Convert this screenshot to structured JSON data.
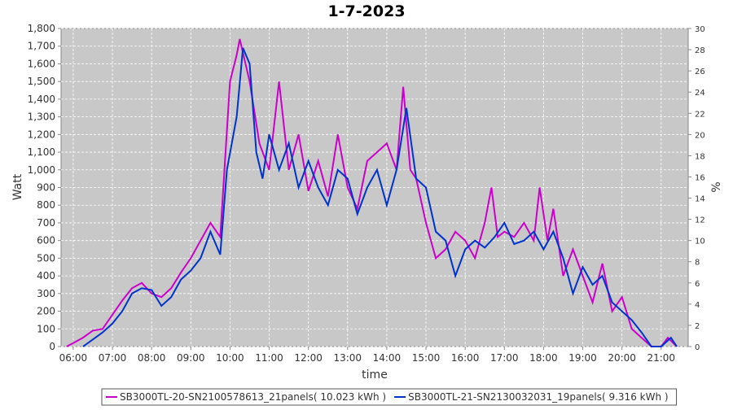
{
  "chart_data": {
    "type": "line",
    "title": "1-7-2023",
    "x_label": "time",
    "y_label": "Watt",
    "y2_label": "%",
    "xlim": [
      5.69,
      21.69
    ],
    "xticks": [
      {
        "value": 6,
        "label": "06:00"
      },
      {
        "value": 7,
        "label": "07:00"
      },
      {
        "value": 8,
        "label": "08:00"
      },
      {
        "value": 9,
        "label": "09:00"
      },
      {
        "value": 10,
        "label": "10:00"
      },
      {
        "value": 11,
        "label": "11:00"
      },
      {
        "value": 12,
        "label": "12:00"
      },
      {
        "value": 13,
        "label": "13:00"
      },
      {
        "value": 14,
        "label": "14:00"
      },
      {
        "value": 15,
        "label": "15:00"
      },
      {
        "value": 16,
        "label": "16:00"
      },
      {
        "value": 17,
        "label": "17:00"
      },
      {
        "value": 18,
        "label": "18:00"
      },
      {
        "value": 19,
        "label": "19:00"
      },
      {
        "value": 20,
        "label": "20:00"
      },
      {
        "value": 21,
        "label": "21:00"
      }
    ],
    "ylim": [
      0,
      1800
    ],
    "yticks": [
      0,
      100,
      200,
      300,
      400,
      500,
      600,
      700,
      800,
      900,
      {
        "value": 1000,
        "label": "1,000"
      },
      {
        "value": 1100,
        "label": "1,100"
      },
      {
        "value": 1200,
        "label": "1,200"
      },
      {
        "value": 1300,
        "label": "1,300"
      },
      {
        "value": 1400,
        "label": "1,400"
      },
      {
        "value": 1500,
        "label": "1,500"
      },
      {
        "value": 1600,
        "label": "1,600"
      },
      {
        "value": 1700,
        "label": "1,700"
      },
      {
        "value": 1800,
        "label": "1,800"
      }
    ],
    "y2lim": [
      0,
      30
    ],
    "y2ticks": [
      0,
      2,
      4,
      6,
      8,
      10,
      12,
      14,
      16,
      18,
      20,
      22,
      24,
      26,
      28,
      30
    ],
    "grid": true,
    "series": [
      {
        "name": "SB3000TL-20-SN2100578613_21panels( 10.023 kWh )",
        "color": "#cc00cc",
        "x": [
          5.83,
          6.0,
          6.25,
          6.5,
          6.75,
          7.0,
          7.25,
          7.5,
          7.75,
          8.0,
          8.25,
          8.5,
          8.75,
          9.0,
          9.25,
          9.5,
          9.75,
          10.0,
          10.17,
          10.25,
          10.5,
          10.75,
          11.0,
          11.25,
          11.5,
          11.75,
          12.0,
          12.25,
          12.5,
          12.75,
          13.0,
          13.25,
          13.5,
          13.75,
          14.0,
          14.25,
          14.42,
          14.6,
          14.75,
          15.0,
          15.25,
          15.5,
          15.75,
          16.0,
          16.25,
          16.5,
          16.67,
          16.83,
          17.0,
          17.25,
          17.5,
          17.75,
          17.9,
          18.1,
          18.25,
          18.5,
          18.75,
          19.0,
          19.25,
          19.5,
          19.75,
          20.0,
          20.25,
          20.5,
          20.75,
          21.0,
          21.17,
          21.4
        ],
        "values": [
          0,
          20,
          50,
          90,
          100,
          180,
          260,
          330,
          360,
          300,
          280,
          330,
          420,
          500,
          600,
          700,
          620,
          1500,
          1650,
          1740,
          1500,
          1150,
          1000,
          1500,
          1000,
          1200,
          880,
          1050,
          850,
          1200,
          900,
          780,
          1050,
          1100,
          1150,
          1000,
          1470,
          1000,
          950,
          700,
          500,
          550,
          650,
          600,
          500,
          700,
          900,
          620,
          650,
          620,
          700,
          600,
          900,
          600,
          780,
          400,
          550,
          400,
          250,
          470,
          200,
          280,
          100,
          50,
          0,
          0,
          50,
          0
        ]
      },
      {
        "name": "SB3000TL-21-SN2130032031_19panels( 9.316 kWh )",
        "color": "#0033cc",
        "x": [
          6.25,
          6.5,
          6.75,
          7.0,
          7.25,
          7.5,
          7.75,
          8.0,
          8.25,
          8.5,
          8.75,
          9.0,
          9.25,
          9.5,
          9.75,
          9.92,
          10.17,
          10.33,
          10.5,
          10.67,
          10.83,
          11.0,
          11.25,
          11.5,
          11.75,
          12.0,
          12.25,
          12.5,
          12.75,
          13.0,
          13.25,
          13.5,
          13.75,
          14.0,
          14.25,
          14.5,
          14.75,
          15.0,
          15.25,
          15.5,
          15.75,
          16.0,
          16.25,
          16.5,
          16.75,
          17.0,
          17.25,
          17.5,
          17.75,
          18.0,
          18.25,
          18.5,
          18.75,
          19.0,
          19.25,
          19.5,
          19.75,
          20.0,
          20.25,
          20.5,
          20.75,
          21.0,
          21.25,
          21.4
        ],
        "values": [
          0,
          40,
          80,
          130,
          200,
          300,
          330,
          320,
          230,
          280,
          380,
          430,
          500,
          650,
          520,
          1000,
          1300,
          1690,
          1600,
          1100,
          950,
          1200,
          1000,
          1150,
          900,
          1050,
          900,
          800,
          1000,
          950,
          750,
          900,
          1000,
          800,
          1000,
          1350,
          950,
          900,
          650,
          600,
          400,
          550,
          600,
          560,
          620,
          700,
          580,
          600,
          650,
          550,
          650,
          500,
          300,
          450,
          350,
          400,
          250,
          200,
          150,
          80,
          0,
          0,
          50,
          0
        ]
      }
    ]
  }
}
